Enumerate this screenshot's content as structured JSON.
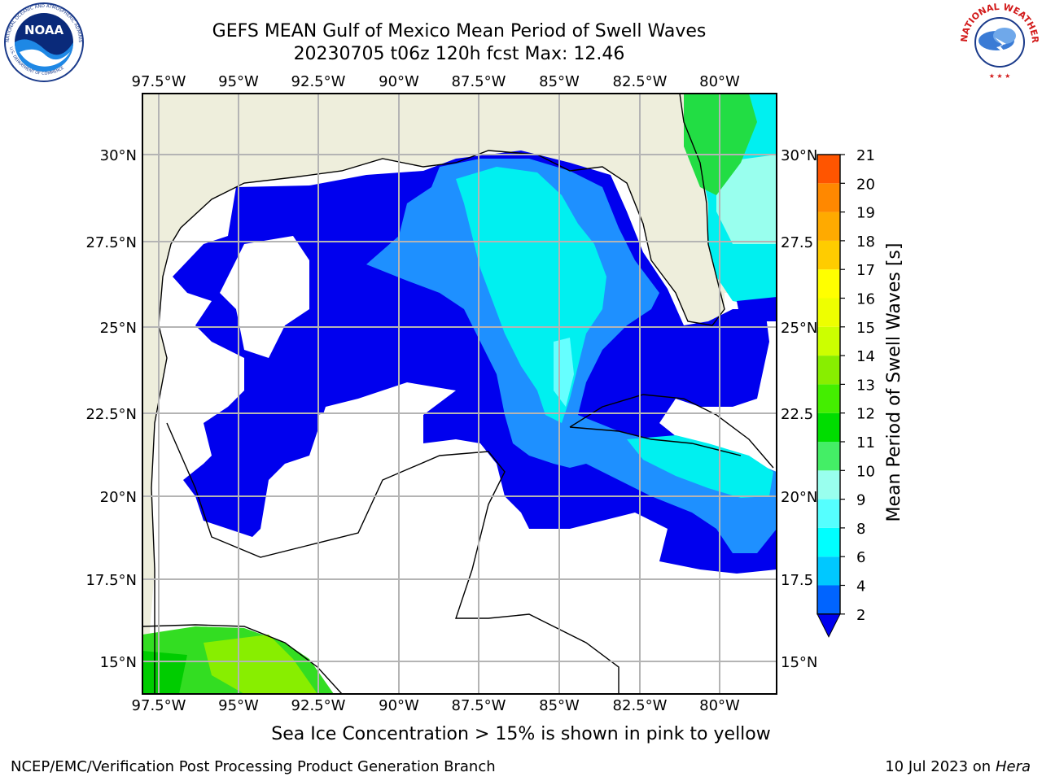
{
  "header": {
    "title_line1": "GEFS MEAN Gulf of Mexico Mean Period of Swell Waves",
    "title_line2": "20230705 t06z 120h fcst   Max: 12.46"
  },
  "logos": {
    "left": {
      "name": "noaa-logo",
      "text": "NOAA",
      "ring_text": "NATIONAL OCEANIC AND ATMOSPHERIC ADMINISTRATION",
      "ring_text_bottom": "U.S. DEPARTMENT OF COMMERCE"
    },
    "right": {
      "name": "nws-logo",
      "ring_text": "NATIONAL WEATHER SERVICE"
    }
  },
  "map": {
    "lon_labels": [
      "97.5°W",
      "95°W",
      "92.5°W",
      "90°W",
      "87.5°W",
      "85°W",
      "82.5°W",
      "80°W"
    ],
    "lat_labels_left": [
      "30°N",
      "27.5°N",
      "25°N",
      "22.5°N",
      "20°N",
      "17.5°N",
      "15°N"
    ],
    "lat_labels_right": [
      "30°N",
      "27.5",
      "25°N",
      "22.5",
      "20°N",
      "17.5",
      "15°N"
    ],
    "colors": {
      "land": "#eeeedc",
      "water_low": "#ffffff",
      "blue": "#0000ee",
      "mid_blue": "#1e90ff",
      "cyan": "#00eeee",
      "light_cyan": "#66ffff",
      "aqua": "#99ffee",
      "green": "#22dd44",
      "grid": "#b4b4b4"
    }
  },
  "colorbar": {
    "label": "Mean Period of Swell Waves [s]",
    "ticks": [
      "2",
      "4",
      "6",
      "8",
      "9",
      "10",
      "11",
      "12",
      "13",
      "14",
      "15",
      "16",
      "17",
      "18",
      "19",
      "20",
      "21"
    ],
    "colors": [
      "#0064ff",
      "#00c8ff",
      "#00ffff",
      "#55ffff",
      "#99ffee",
      "#44ee66",
      "#00dd00",
      "#44ee00",
      "#88ee00",
      "#ccff00",
      "#eeff00",
      "#ffff00",
      "#ffcc00",
      "#ffaa00",
      "#ff8800",
      "#ff5500",
      "#ff2200",
      "#ff0000"
    ]
  },
  "note": "Sea Ice Concentration > 15% is shown in pink to yellow",
  "footer": {
    "left": "NCEP/EMC/Verification Post Processing Product Generation Branch",
    "right_prefix": "10 Jul 2023 on ",
    "right_machine": "Hera"
  }
}
